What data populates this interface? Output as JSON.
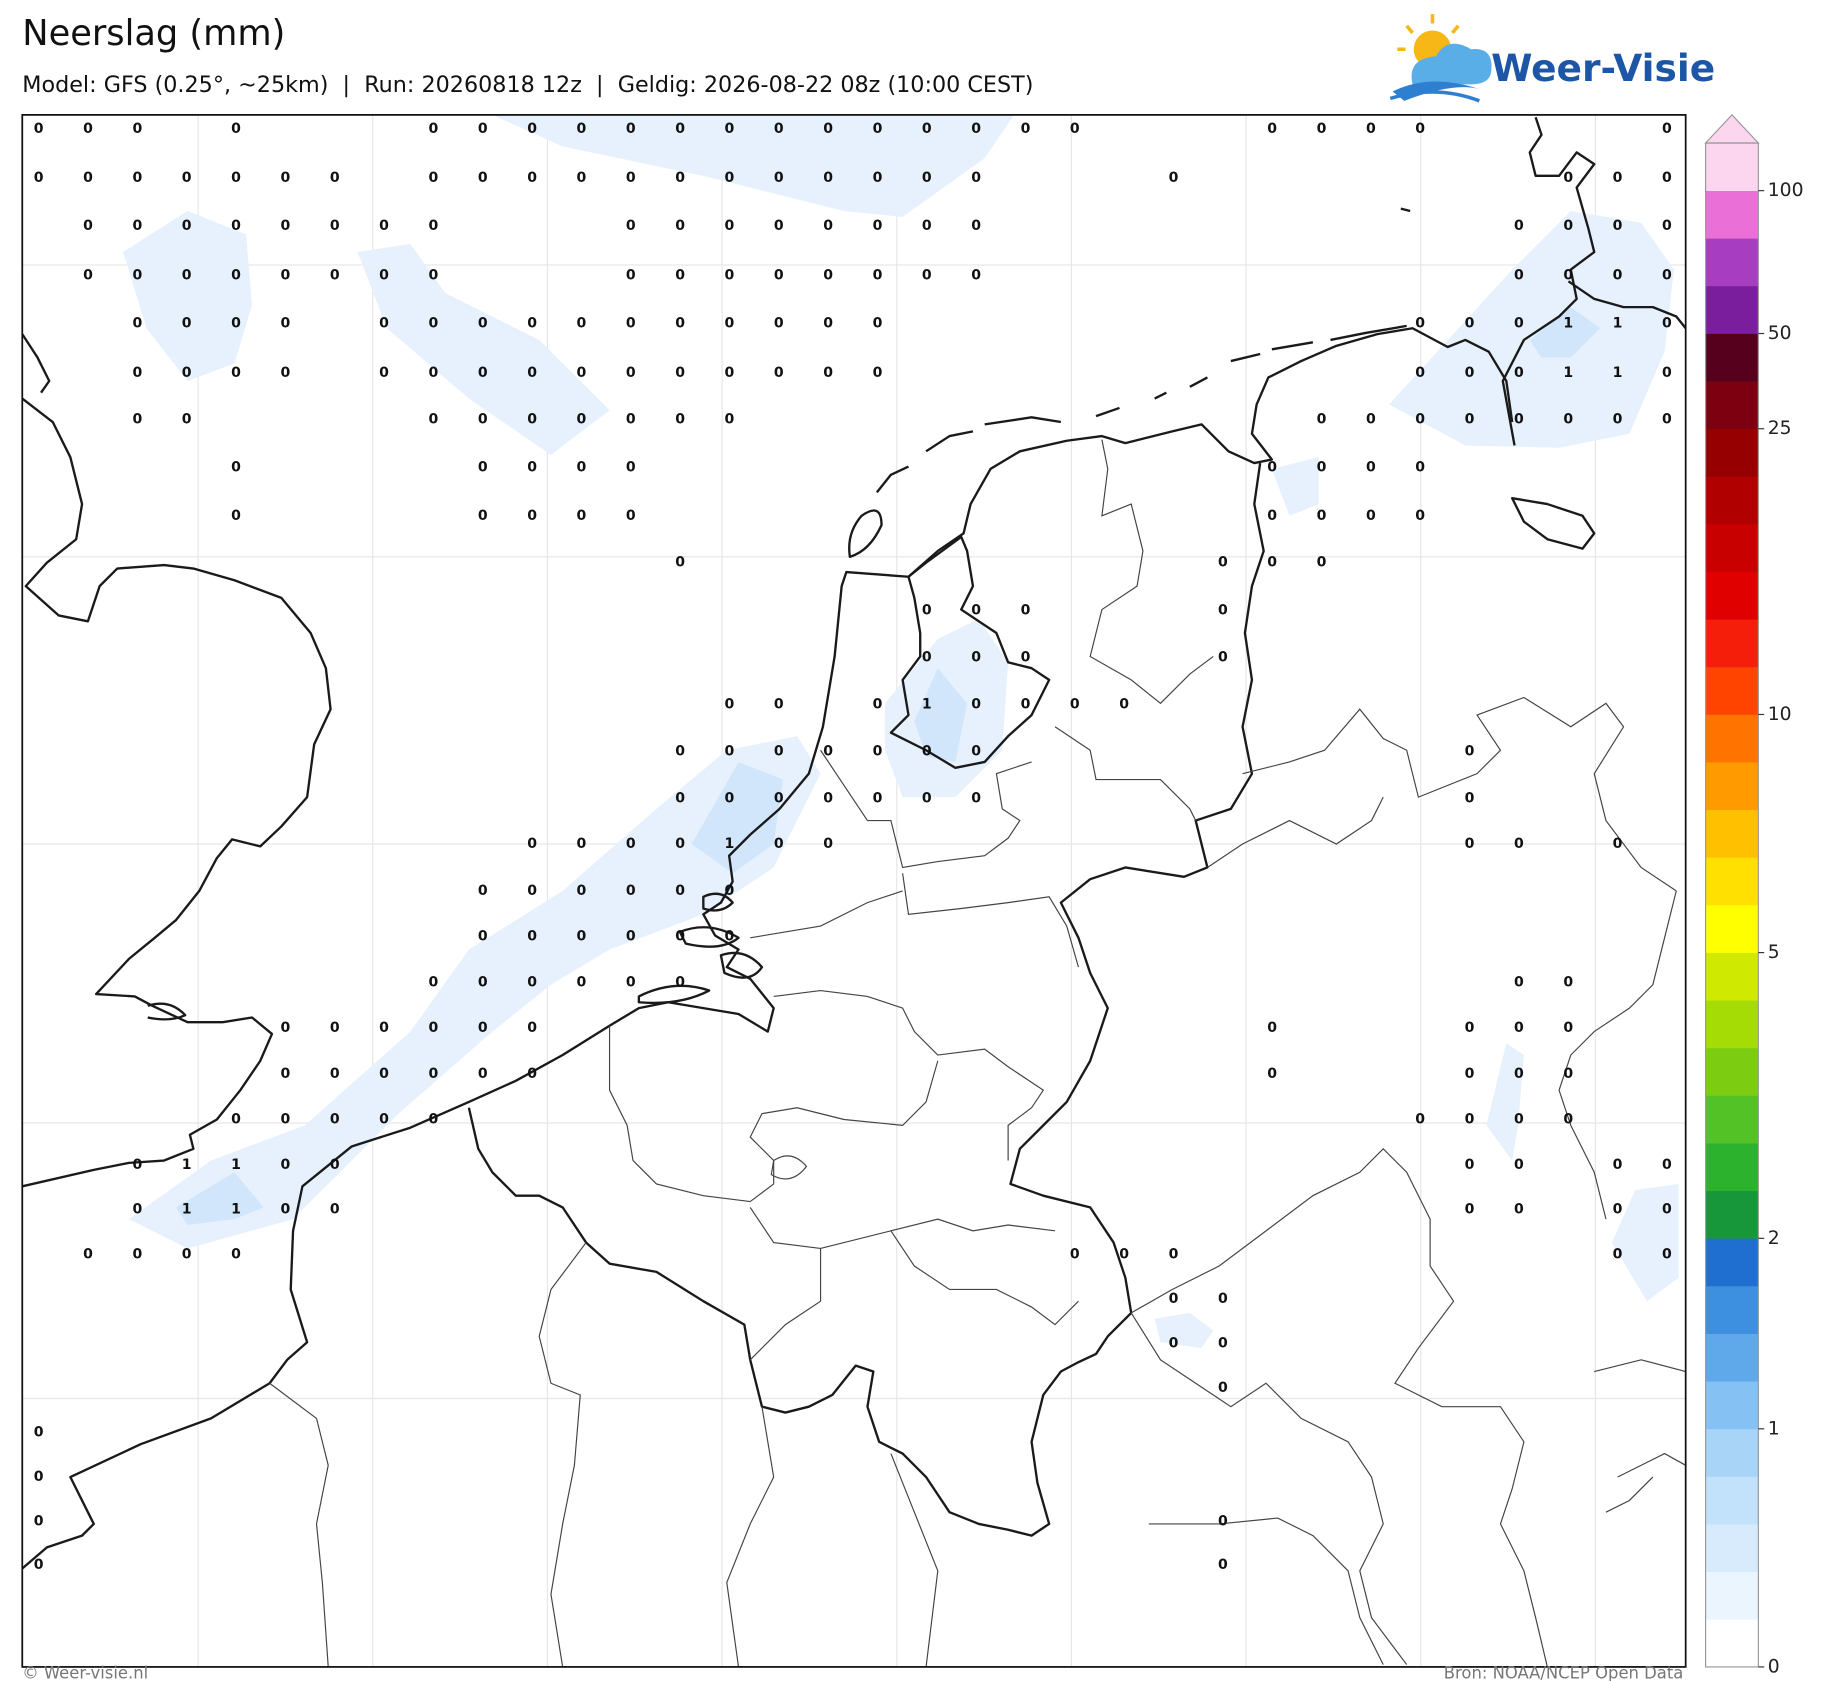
{
  "header": {
    "title": "Neerslag (mm)",
    "subtitle": "Model: GFS (0.25°, ~25km)  |  Run: 20260818 12z  |  Geldig: 2026-08-22 08z (10:00 CEST)"
  },
  "logo": {
    "text": "Weer-Visie"
  },
  "footer": {
    "left": "© Weer-visie.nl",
    "right": "Bron: NOAA/NCEP Open Data"
  },
  "colorbar": {
    "colors": [
      "#ffffff",
      "#ebf5fe",
      "#d8ebfc",
      "#c2e1fb",
      "#a8d4f8",
      "#86c1f3",
      "#5fa9eb",
      "#3d8fe0",
      "#1f6fd0",
      "#17973a",
      "#2db22d",
      "#52c226",
      "#7ccd12",
      "#a6dc06",
      "#cfe900",
      "#ffff00",
      "#ffe000",
      "#ffc000",
      "#ff9a00",
      "#ff7400",
      "#ff4400",
      "#f41e0a",
      "#e00000",
      "#c80000",
      "#b00000",
      "#960000",
      "#7c0010",
      "#56001e",
      "#7a1e9e",
      "#a73dc0",
      "#ea6fd7",
      "#fcd6ef"
    ],
    "levels": [
      0,
      0.1,
      0.2,
      0.3,
      0.5,
      1,
      1.25,
      1.5,
      1.75,
      2,
      2.5,
      3,
      3.5,
      4,
      4.5,
      5,
      6,
      7,
      8,
      9,
      10,
      12,
      14,
      16,
      18,
      20,
      25,
      35,
      50,
      60,
      75,
      100,
      150
    ],
    "ticks": [
      0,
      1,
      2,
      5,
      10,
      25,
      50,
      100
    ]
  },
  "grid": {
    "rows": [
      [
        0,
        0,
        0,
        null,
        0,
        null,
        null,
        null,
        0,
        0,
        0,
        0,
        0,
        0,
        0,
        0,
        0,
        0,
        0,
        0,
        0,
        0,
        null,
        null,
        null,
        0,
        0,
        0,
        0,
        null,
        null,
        null,
        null,
        0
      ],
      [
        0,
        0,
        0,
        0,
        0,
        0,
        0,
        null,
        0,
        0,
        0,
        0,
        0,
        0,
        0,
        0,
        0,
        0,
        0,
        0,
        null,
        null,
        null,
        0,
        null,
        null,
        null,
        null,
        null,
        null,
        null,
        0,
        0,
        0
      ],
      [
        null,
        0,
        0,
        0,
        0,
        0,
        0,
        0,
        0,
        null,
        null,
        null,
        0,
        0,
        0,
        0,
        0,
        0,
        0,
        0,
        null,
        null,
        null,
        null,
        null,
        null,
        null,
        null,
        null,
        null,
        0,
        0,
        0,
        0
      ],
      [
        null,
        0,
        0,
        0,
        0,
        0,
        0,
        0,
        0,
        null,
        null,
        null,
        0,
        0,
        0,
        0,
        0,
        0,
        0,
        0,
        null,
        null,
        null,
        null,
        null,
        null,
        null,
        null,
        null,
        null,
        0,
        0,
        0,
        0
      ],
      [
        null,
        null,
        0,
        0,
        0,
        0,
        null,
        0,
        0,
        0,
        0,
        0,
        0,
        0,
        0,
        0,
        0,
        0,
        null,
        null,
        null,
        null,
        null,
        null,
        null,
        null,
        null,
        null,
        0,
        0,
        0,
        1,
        1,
        0
      ],
      [
        null,
        null,
        0,
        0,
        0,
        0,
        null,
        0,
        0,
        0,
        0,
        0,
        0,
        0,
        0,
        0,
        0,
        0,
        null,
        null,
        null,
        null,
        null,
        null,
        null,
        null,
        null,
        null,
        0,
        0,
        0,
        1,
        1,
        0
      ],
      [
        null,
        null,
        0,
        0,
        null,
        null,
        null,
        null,
        0,
        0,
        0,
        0,
        0,
        0,
        0,
        null,
        null,
        null,
        null,
        null,
        null,
        null,
        null,
        null,
        null,
        null,
        0,
        0,
        0,
        0,
        0,
        0,
        0,
        0
      ],
      [
        null,
        null,
        null,
        null,
        0,
        null,
        null,
        null,
        null,
        0,
        0,
        0,
        0,
        null,
        null,
        null,
        null,
        null,
        null,
        null,
        null,
        null,
        null,
        null,
        null,
        0,
        0,
        0,
        0,
        null,
        null,
        null,
        null,
        null
      ],
      [
        null,
        null,
        null,
        null,
        0,
        null,
        null,
        null,
        null,
        0,
        0,
        0,
        0,
        null,
        null,
        null,
        null,
        null,
        null,
        null,
        null,
        null,
        null,
        null,
        null,
        0,
        0,
        0,
        0,
        null,
        null,
        null,
        null,
        null
      ],
      [
        null,
        null,
        null,
        null,
        null,
        null,
        null,
        null,
        null,
        null,
        null,
        null,
        null,
        0,
        null,
        null,
        null,
        null,
        null,
        null,
        null,
        null,
        null,
        null,
        0,
        0,
        0,
        null,
        null,
        null,
        null,
        null,
        null,
        null
      ],
      [
        null,
        null,
        null,
        null,
        null,
        null,
        null,
        null,
        null,
        null,
        null,
        null,
        null,
        null,
        null,
        null,
        null,
        null,
        0,
        0,
        0,
        null,
        null,
        null,
        0,
        null,
        null,
        null,
        null,
        null,
        null,
        null,
        null,
        null
      ],
      [
        null,
        null,
        null,
        null,
        null,
        null,
        null,
        null,
        null,
        null,
        null,
        null,
        null,
        null,
        null,
        null,
        null,
        null,
        0,
        0,
        0,
        null,
        null,
        null,
        0,
        null,
        null,
        null,
        null,
        null,
        null,
        null,
        null,
        null
      ],
      [
        null,
        null,
        null,
        null,
        null,
        null,
        null,
        null,
        null,
        null,
        null,
        null,
        null,
        null,
        0,
        0,
        null,
        0,
        1,
        0,
        0,
        0,
        0,
        null,
        null,
        null,
        null,
        null,
        null,
        null,
        null,
        null,
        null,
        null
      ],
      [
        null,
        null,
        null,
        null,
        null,
        null,
        null,
        null,
        null,
        null,
        null,
        null,
        null,
        0,
        0,
        0,
        0,
        0,
        0,
        0,
        null,
        null,
        null,
        null,
        null,
        null,
        null,
        null,
        null,
        0,
        null,
        null,
        null,
        null
      ],
      [
        null,
        null,
        null,
        null,
        null,
        null,
        null,
        null,
        null,
        null,
        null,
        null,
        null,
        0,
        0,
        0,
        0,
        0,
        0,
        0,
        null,
        null,
        null,
        null,
        null,
        null,
        null,
        null,
        null,
        0,
        null,
        null,
        null,
        null
      ],
      [
        null,
        null,
        null,
        null,
        null,
        null,
        null,
        null,
        null,
        null,
        0,
        0,
        0,
        0,
        1,
        0,
        0,
        null,
        null,
        null,
        null,
        null,
        null,
        null,
        null,
        null,
        null,
        null,
        null,
        0,
        0,
        null,
        0,
        null
      ],
      [
        null,
        null,
        null,
        null,
        null,
        null,
        null,
        null,
        null,
        0,
        0,
        0,
        0,
        0,
        0,
        null,
        null,
        null,
        null,
        null,
        null,
        null,
        null,
        null,
        null,
        null,
        null,
        null,
        null,
        null,
        null,
        null,
        null,
        null
      ],
      [
        null,
        null,
        null,
        null,
        null,
        null,
        null,
        null,
        null,
        0,
        0,
        0,
        0,
        0,
        0,
        null,
        null,
        null,
        null,
        null,
        null,
        null,
        null,
        null,
        null,
        null,
        null,
        null,
        null,
        null,
        null,
        null,
        null,
        null
      ],
      [
        null,
        null,
        null,
        null,
        null,
        null,
        null,
        null,
        0,
        0,
        0,
        0,
        0,
        0,
        null,
        null,
        null,
        null,
        null,
        null,
        null,
        null,
        null,
        null,
        null,
        null,
        null,
        null,
        null,
        null,
        0,
        0,
        null,
        null
      ],
      [
        null,
        null,
        null,
        null,
        null,
        0,
        0,
        0,
        0,
        0,
        0,
        null,
        null,
        null,
        null,
        null,
        null,
        null,
        null,
        null,
        null,
        null,
        null,
        null,
        null,
        0,
        null,
        null,
        null,
        0,
        0,
        0,
        null,
        null
      ],
      [
        null,
        null,
        null,
        null,
        null,
        0,
        0,
        0,
        0,
        0,
        0,
        null,
        null,
        null,
        null,
        null,
        null,
        null,
        null,
        null,
        null,
        null,
        null,
        null,
        null,
        0,
        null,
        null,
        null,
        0,
        0,
        0,
        null,
        null
      ],
      [
        null,
        null,
        null,
        null,
        0,
        0,
        0,
        0,
        0,
        null,
        null,
        null,
        null,
        null,
        null,
        null,
        null,
        null,
        null,
        null,
        null,
        null,
        null,
        null,
        null,
        null,
        null,
        null,
        0,
        0,
        0,
        0,
        null,
        null
      ],
      [
        null,
        null,
        0,
        1,
        1,
        0,
        0,
        null,
        null,
        null,
        null,
        null,
        null,
        null,
        null,
        null,
        null,
        null,
        null,
        null,
        null,
        null,
        null,
        null,
        null,
        null,
        null,
        null,
        null,
        0,
        0,
        null,
        0,
        0
      ],
      [
        null,
        null,
        0,
        1,
        1,
        0,
        0,
        null,
        null,
        null,
        null,
        null,
        null,
        null,
        null,
        null,
        null,
        null,
        null,
        null,
        null,
        null,
        null,
        null,
        null,
        null,
        null,
        null,
        null,
        0,
        0,
        null,
        0,
        0
      ],
      [
        null,
        0,
        0,
        0,
        0,
        null,
        null,
        null,
        null,
        null,
        null,
        null,
        null,
        null,
        null,
        null,
        null,
        null,
        null,
        null,
        null,
        0,
        0,
        0,
        null,
        null,
        null,
        null,
        null,
        null,
        null,
        null,
        0,
        0
      ],
      [
        null,
        null,
        null,
        null,
        null,
        null,
        null,
        null,
        null,
        null,
        null,
        null,
        null,
        null,
        null,
        null,
        null,
        null,
        null,
        null,
        null,
        null,
        null,
        0,
        0,
        null,
        null,
        null,
        null,
        null,
        null,
        null,
        null,
        null
      ],
      [
        null,
        null,
        null,
        null,
        null,
        null,
        null,
        null,
        null,
        null,
        null,
        null,
        null,
        null,
        null,
        null,
        null,
        null,
        null,
        null,
        null,
        null,
        null,
        0,
        0,
        null,
        null,
        null,
        null,
        null,
        null,
        null,
        null,
        null
      ],
      [
        null,
        null,
        null,
        null,
        null,
        null,
        null,
        null,
        null,
        null,
        null,
        null,
        null,
        null,
        null,
        null,
        null,
        null,
        null,
        null,
        null,
        null,
        null,
        null,
        0,
        null,
        null,
        null,
        null,
        null,
        null,
        null,
        null,
        null
      ],
      [
        0,
        null,
        null,
        null,
        null,
        null,
        null,
        null,
        null,
        null,
        null,
        null,
        null,
        null,
        null,
        null,
        null,
        null,
        null,
        null,
        null,
        null,
        null,
        null,
        null,
        null,
        null,
        null,
        null,
        null,
        null,
        null,
        null,
        null
      ],
      [
        0,
        null,
        null,
        null,
        null,
        null,
        null,
        null,
        null,
        null,
        null,
        null,
        null,
        null,
        null,
        null,
        null,
        null,
        null,
        null,
        null,
        null,
        null,
        null,
        null,
        null,
        null,
        null,
        null,
        null,
        null,
        null,
        null,
        null
      ],
      [
        0,
        null,
        null,
        null,
        null,
        null,
        null,
        null,
        null,
        null,
        null,
        null,
        null,
        null,
        null,
        null,
        null,
        null,
        null,
        null,
        null,
        null,
        null,
        null,
        0,
        null,
        null,
        null,
        null,
        null,
        null,
        null,
        null,
        null
      ],
      [
        0,
        null,
        null,
        null,
        null,
        null,
        null,
        null,
        null,
        null,
        null,
        null,
        null,
        null,
        null,
        null,
        null,
        null,
        null,
        null,
        null,
        null,
        null,
        null,
        0,
        null,
        null,
        null,
        null,
        null,
        null,
        null,
        null,
        null
      ]
    ]
  }
}
